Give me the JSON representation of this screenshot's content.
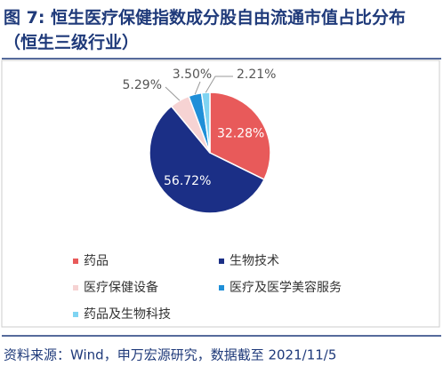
{
  "chart_data": {
    "type": "pie",
    "title": "图 7: 恒生医疗保健指数成分股自由流通市值占比分布（恒生三级行业）",
    "categories": [
      "药品",
      "生物技术",
      "医疗保健设备",
      "医疗及医学美容服务",
      "药品及生物科技"
    ],
    "values": [
      32.28,
      56.72,
      5.29,
      3.5,
      2.21
    ],
    "value_labels": [
      "32.28%",
      "56.72%",
      "5.29%",
      "3.50%",
      "2.21%"
    ],
    "colors": [
      "#e85a5a",
      "#1b2f86",
      "#f6d3d3",
      "#1f8fd8",
      "#7fd4f2"
    ],
    "legend": "bottom"
  },
  "source": "资料来源：Wind，申万宏源研究，数据截至 2021/11/5"
}
